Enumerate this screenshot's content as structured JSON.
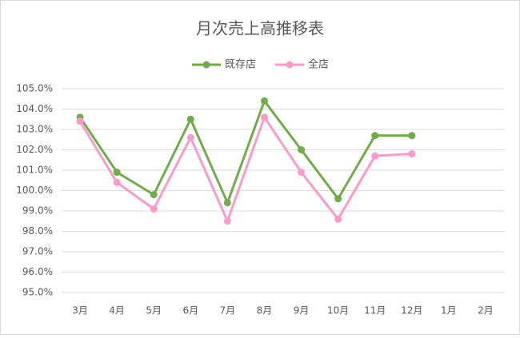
{
  "chart_data": {
    "type": "line",
    "title": "月次売上高推移表",
    "categories": [
      "3月",
      "4月",
      "5月",
      "6月",
      "7月",
      "8月",
      "9月",
      "10月",
      "11月",
      "12月",
      "1月",
      "2月"
    ],
    "series": [
      {
        "name": "既存店",
        "color": "#70ad47",
        "values": [
          103.6,
          100.9,
          99.8,
          103.5,
          99.4,
          104.4,
          102.0,
          99.6,
          102.7,
          102.7,
          null,
          null
        ]
      },
      {
        "name": "全店",
        "color": "#ff99cc",
        "values": [
          103.4,
          100.4,
          99.1,
          102.6,
          98.5,
          103.6,
          100.9,
          98.6,
          101.7,
          101.8,
          null,
          null
        ]
      }
    ],
    "ylim": [
      95,
      105
    ],
    "yticks": [
      {
        "value": 95,
        "label": "95.0%"
      },
      {
        "value": 96,
        "label": "96.0%"
      },
      {
        "value": 97,
        "label": "97.0%"
      },
      {
        "value": 98,
        "label": "98.0%"
      },
      {
        "value": 99,
        "label": "99.0%"
      },
      {
        "value": 100,
        "label": "100.0%"
      },
      {
        "value": 101,
        "label": "101.0%"
      },
      {
        "value": 102,
        "label": "102.0%"
      },
      {
        "value": 103,
        "label": "103.0%"
      },
      {
        "value": 104,
        "label": "104.0%"
      },
      {
        "value": 105,
        "label": "105.0%"
      }
    ],
    "grid": true,
    "legend": "top"
  }
}
